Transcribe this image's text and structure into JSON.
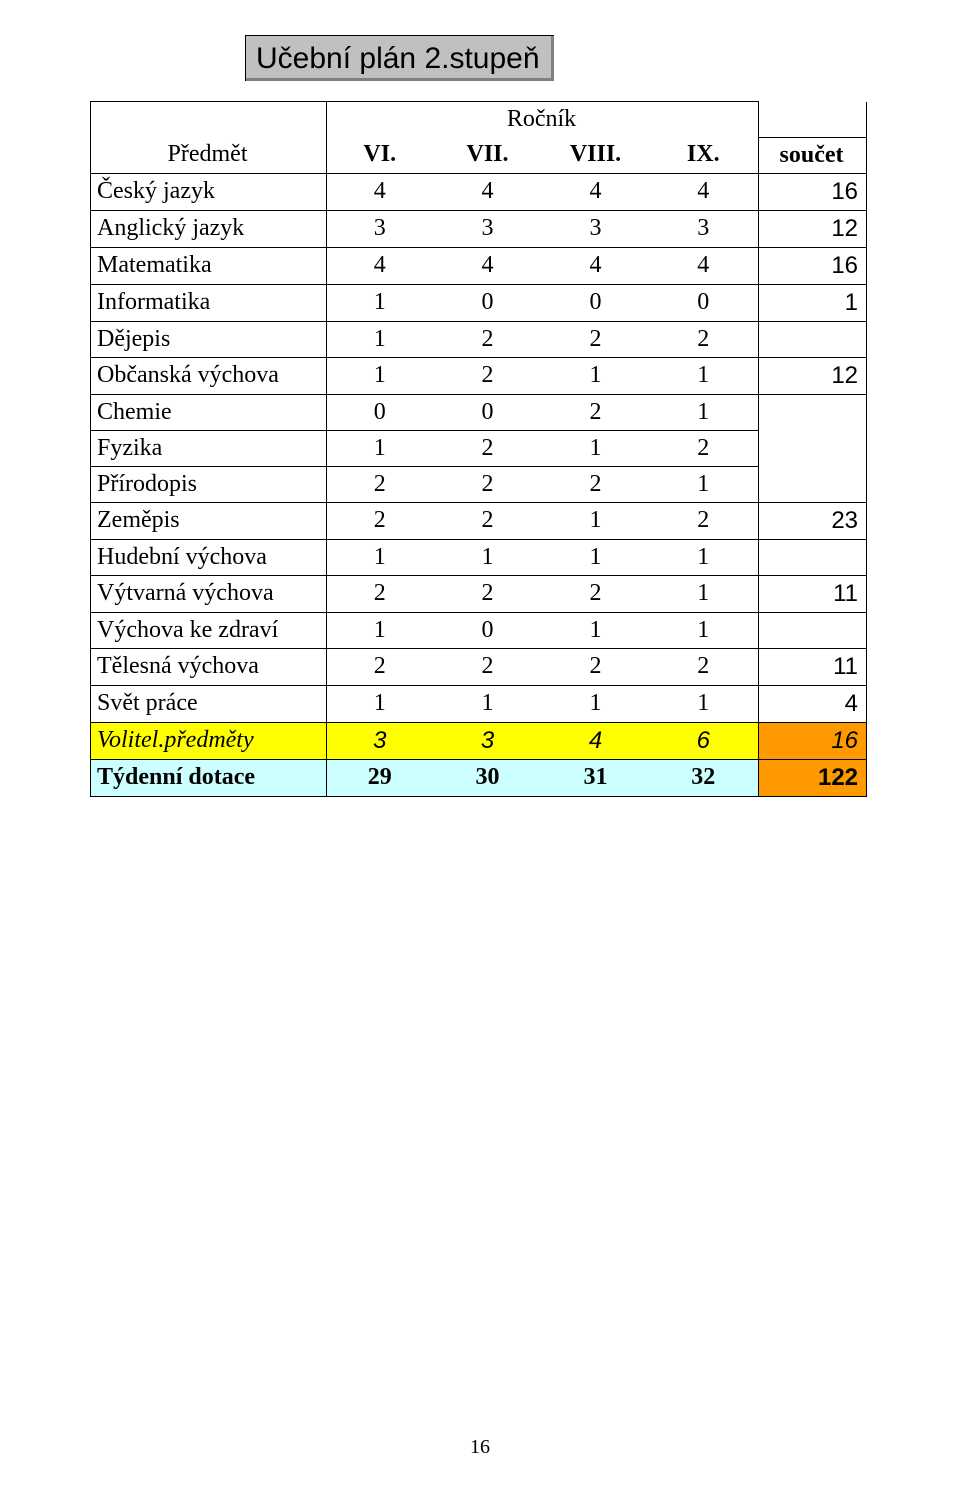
{
  "title": "Učební plán 2.stupeň",
  "header": {
    "rocnik_label": "Ročník",
    "predmet_label": "Předmět",
    "cols": [
      "VI.",
      "VII.",
      "VIII.",
      "IX."
    ],
    "soucet_label": "součet"
  },
  "rows": [
    {
      "subject": "Český jazyk",
      "v": [
        "4",
        "4",
        "4",
        "4"
      ],
      "sum": "16",
      "sum_show": true,
      "style": "normal"
    },
    {
      "subject": "Anglický jazyk",
      "v": [
        "3",
        "3",
        "3",
        "3"
      ],
      "sum": "12",
      "sum_show": true,
      "style": "normal"
    },
    {
      "subject": "Matematika",
      "v": [
        "4",
        "4",
        "4",
        "4"
      ],
      "sum": "16",
      "sum_show": true,
      "style": "normal"
    },
    {
      "subject": "Informatika",
      "v": [
        "1",
        "0",
        "0",
        "0"
      ],
      "sum": "1",
      "sum_show": true,
      "style": "normal"
    },
    {
      "subject": "Dějepis",
      "v": [
        "1",
        "2",
        "2",
        "2"
      ],
      "sum": "",
      "sum_show": false,
      "style": "normal"
    },
    {
      "subject": "Občanská výchova",
      "v": [
        "1",
        "2",
        "1",
        "1"
      ],
      "sum": "12",
      "sum_show": true,
      "style": "normal"
    },
    {
      "subject": "Chemie",
      "v": [
        "0",
        "0",
        "2",
        "1"
      ],
      "sum": "",
      "sum_show": false,
      "style": "normal"
    },
    {
      "subject": "Fyzika",
      "v": [
        "1",
        "2",
        "1",
        "2"
      ],
      "sum": "",
      "sum_show": false,
      "style": "normal"
    },
    {
      "subject": "Přírodopis",
      "v": [
        "2",
        "2",
        "2",
        "1"
      ],
      "sum": "",
      "sum_show": false,
      "style": "normal"
    },
    {
      "subject": "Zeměpis",
      "v": [
        "2",
        "2",
        "1",
        "2"
      ],
      "sum": "23",
      "sum_show": true,
      "style": "normal"
    },
    {
      "subject": "Hudební výchova",
      "v": [
        "1",
        "1",
        "1",
        "1"
      ],
      "sum": "",
      "sum_show": false,
      "style": "normal"
    },
    {
      "subject": "Výtvarná výchova",
      "v": [
        "2",
        "2",
        "2",
        "1"
      ],
      "sum": "11",
      "sum_show": true,
      "style": "normal"
    },
    {
      "subject": "Výchova ke zdraví",
      "v": [
        "1",
        "0",
        "1",
        "1"
      ],
      "sum": "",
      "sum_show": false,
      "style": "normal"
    },
    {
      "subject": "Tělesná výchova",
      "v": [
        "2",
        "2",
        "2",
        "2"
      ],
      "sum": "11",
      "sum_show": true,
      "style": "normal"
    },
    {
      "subject": "Svět práce",
      "v": [
        "1",
        "1",
        "1",
        "1"
      ],
      "sum": "4",
      "sum_show": true,
      "style": "normal"
    },
    {
      "subject": "Volitel.předměty",
      "v": [
        "3",
        "3",
        "4",
        "6"
      ],
      "sum": "16",
      "sum_show": true,
      "style": "volit"
    },
    {
      "subject": "Týdenní dotace",
      "v": [
        "29",
        "30",
        "31",
        "32"
      ],
      "sum": "122",
      "sum_show": true,
      "style": "tyden"
    }
  ],
  "page_number": "16",
  "colors": {
    "title_bg": "#c0c0c0",
    "title_shadow": "#808080",
    "volit_bg": "#ffff00",
    "tyden_bg": "#ccffff",
    "sum_orange": "#ff9900",
    "border": "#000000",
    "text": "#000000"
  },
  "fonts": {
    "title_family": "Arial",
    "body_family": "Times New Roman",
    "title_size_pt": 22,
    "body_size_pt": 18
  }
}
